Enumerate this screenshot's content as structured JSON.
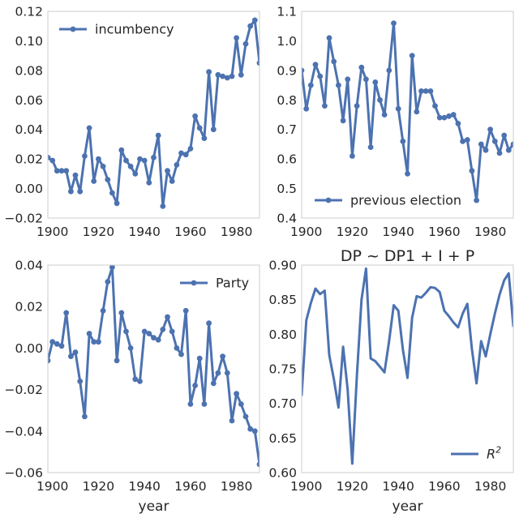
{
  "figure": {
    "line_color": "#4c72b0"
  },
  "chart_data": [
    {
      "type": "line",
      "title": "",
      "xlabel": "",
      "ylabel": "",
      "xlim": [
        1898,
        1990
      ],
      "ylim": [
        -0.02,
        0.12
      ],
      "xticks": [
        1900,
        1920,
        1940,
        1960,
        1980
      ],
      "yticks": [
        -0.02,
        0.0,
        0.02,
        0.04,
        0.06,
        0.08,
        0.1,
        0.12
      ],
      "tick_labels_y": [
        "−0.02",
        "0.00",
        "0.02",
        "0.04",
        "0.06",
        "0.08",
        "0.10",
        "0.12"
      ],
      "grid": false,
      "legend_position": "top-left",
      "markers": true,
      "series": [
        {
          "name": "incumbency",
          "x": [
            1898,
            1900,
            1902,
            1904,
            1906,
            1908,
            1910,
            1912,
            1914,
            1916,
            1918,
            1920,
            1922,
            1924,
            1926,
            1928,
            1930,
            1932,
            1934,
            1936,
            1938,
            1940,
            1942,
            1944,
            1946,
            1948,
            1950,
            1952,
            1954,
            1956,
            1958,
            1960,
            1962,
            1964,
            1966,
            1968,
            1970,
            1972,
            1974,
            1976,
            1978,
            1980,
            1982,
            1984,
            1986,
            1988,
            1990
          ],
          "values": [
            0.021,
            0.019,
            0.012,
            0.012,
            0.012,
            -0.002,
            0.009,
            -0.002,
            0.022,
            0.041,
            0.005,
            0.02,
            0.015,
            0.006,
            -0.003,
            -0.01,
            0.026,
            0.019,
            0.015,
            0.01,
            0.02,
            0.019,
            0.004,
            0.021,
            0.036,
            -0.012,
            0.012,
            0.005,
            0.016,
            0.024,
            0.023,
            0.027,
            0.049,
            0.041,
            0.034,
            0.079,
            0.04,
            0.077,
            0.076,
            0.075,
            0.076,
            0.102,
            0.077,
            0.098,
            0.11,
            0.114,
            0.085
          ]
        }
      ]
    },
    {
      "type": "line",
      "title": "",
      "xlabel": "",
      "ylabel": "",
      "xlim": [
        1898,
        1990
      ],
      "ylim": [
        0.4,
        1.1
      ],
      "xticks": [
        1900,
        1920,
        1940,
        1960,
        1980
      ],
      "yticks": [
        0.4,
        0.5,
        0.6,
        0.7,
        0.8,
        0.9,
        1.0,
        1.1
      ],
      "tick_labels_y": [
        "0.4",
        "0.5",
        "0.6",
        "0.7",
        "0.8",
        "0.9",
        "1.0",
        "1.1"
      ],
      "grid": false,
      "legend_position": "bottom-left",
      "markers": true,
      "series": [
        {
          "name": "previous election",
          "x": [
            1898,
            1900,
            1902,
            1904,
            1906,
            1908,
            1910,
            1912,
            1914,
            1916,
            1918,
            1920,
            1922,
            1924,
            1926,
            1928,
            1930,
            1932,
            1934,
            1936,
            1938,
            1940,
            1942,
            1944,
            1946,
            1948,
            1950,
            1952,
            1954,
            1956,
            1958,
            1960,
            1962,
            1964,
            1966,
            1968,
            1970,
            1972,
            1974,
            1976,
            1978,
            1980,
            1982,
            1984,
            1986,
            1988,
            1990
          ],
          "values": [
            0.9,
            0.77,
            0.85,
            0.92,
            0.88,
            0.78,
            1.01,
            0.93,
            0.85,
            0.73,
            0.87,
            0.61,
            0.78,
            0.91,
            0.87,
            0.64,
            0.86,
            0.8,
            0.75,
            0.9,
            1.06,
            0.77,
            0.66,
            0.55,
            0.95,
            0.76,
            0.83,
            0.83,
            0.83,
            0.78,
            0.74,
            0.74,
            0.745,
            0.75,
            0.72,
            0.66,
            0.665,
            0.56,
            0.46,
            0.65,
            0.63,
            0.7,
            0.66,
            0.62,
            0.68,
            0.63,
            0.65
          ]
        }
      ]
    },
    {
      "type": "line",
      "title": "",
      "xlabel": "year",
      "ylabel": "",
      "xlim": [
        1898,
        1990
      ],
      "ylim": [
        -0.06,
        0.04
      ],
      "xticks": [
        1900,
        1920,
        1940,
        1960,
        1980
      ],
      "yticks": [
        -0.06,
        -0.04,
        -0.02,
        0.0,
        0.02,
        0.04
      ],
      "tick_labels_y": [
        "−0.06",
        "−0.04",
        "−0.02",
        "0.00",
        "0.02",
        "0.04"
      ],
      "grid": false,
      "legend_position": "top-right",
      "markers": true,
      "series": [
        {
          "name": "Party",
          "x": [
            1898,
            1900,
            1902,
            1904,
            1906,
            1908,
            1910,
            1912,
            1914,
            1916,
            1918,
            1920,
            1922,
            1924,
            1926,
            1928,
            1930,
            1932,
            1934,
            1936,
            1938,
            1940,
            1942,
            1944,
            1946,
            1948,
            1950,
            1952,
            1954,
            1956,
            1958,
            1960,
            1962,
            1964,
            1966,
            1968,
            1970,
            1972,
            1974,
            1976,
            1978,
            1980,
            1982,
            1984,
            1986,
            1988,
            1990
          ],
          "values": [
            -0.006,
            0.003,
            0.002,
            0.001,
            0.017,
            -0.004,
            -0.002,
            -0.016,
            -0.033,
            0.007,
            0.003,
            0.003,
            0.018,
            0.032,
            0.039,
            -0.006,
            0.017,
            0.008,
            0.0,
            -0.015,
            -0.016,
            0.008,
            0.007,
            0.005,
            0.004,
            0.009,
            0.015,
            0.008,
            0.0,
            -0.003,
            0.018,
            -0.027,
            -0.018,
            -0.005,
            -0.027,
            0.012,
            -0.017,
            -0.012,
            -0.004,
            -0.012,
            -0.035,
            -0.022,
            -0.027,
            -0.033,
            -0.039,
            -0.04,
            -0.056
          ]
        }
      ]
    },
    {
      "type": "line",
      "title": "DP ~ DP1 + I + P",
      "xlabel": "year",
      "ylabel": "",
      "xlim": [
        1898,
        1990
      ],
      "ylim": [
        0.6,
        0.9
      ],
      "xticks": [
        1900,
        1920,
        1940,
        1960,
        1980
      ],
      "yticks": [
        0.6,
        0.65,
        0.7,
        0.75,
        0.8,
        0.85,
        0.9
      ],
      "tick_labels_y": [
        "0.60",
        "0.65",
        "0.70",
        "0.75",
        "0.80",
        "0.85",
        "0.90"
      ],
      "grid": false,
      "legend_position": "bottom-right",
      "markers": false,
      "series": [
        {
          "name": "R²",
          "x": [
            1898,
            1900,
            1902,
            1904,
            1906,
            1908,
            1910,
            1912,
            1914,
            1916,
            1918,
            1920,
            1922,
            1924,
            1926,
            1928,
            1930,
            1932,
            1934,
            1936,
            1938,
            1940,
            1942,
            1944,
            1946,
            1948,
            1950,
            1952,
            1954,
            1956,
            1958,
            1960,
            1962,
            1964,
            1966,
            1968,
            1970,
            1972,
            1974,
            1976,
            1978,
            1980,
            1982,
            1984,
            1986,
            1988,
            1990
          ],
          "values": [
            0.712,
            0.82,
            0.845,
            0.866,
            0.858,
            0.863,
            0.77,
            0.735,
            0.694,
            0.782,
            0.72,
            0.613,
            0.74,
            0.85,
            0.895,
            0.765,
            0.761,
            0.753,
            0.745,
            0.79,
            0.842,
            0.834,
            0.778,
            0.737,
            0.824,
            0.855,
            0.853,
            0.86,
            0.868,
            0.867,
            0.861,
            0.834,
            0.826,
            0.817,
            0.81,
            0.83,
            0.844,
            0.779,
            0.729,
            0.79,
            0.768,
            0.8,
            0.83,
            0.857,
            0.878,
            0.888,
            0.812
          ]
        }
      ]
    }
  ]
}
